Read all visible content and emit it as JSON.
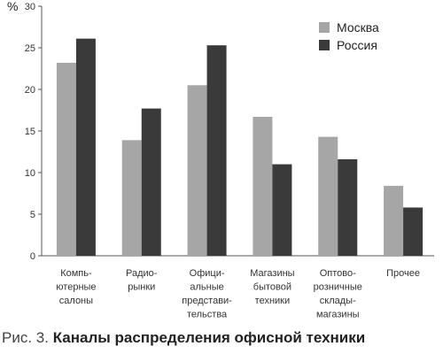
{
  "colors": {
    "moscow": "#a6a6a6",
    "russia": "#3a3a3a",
    "axis": "#555555"
  },
  "caption": {
    "prefix": "Рис. 3.",
    "title": "Каналы распределения офисной техники"
  },
  "chart_data": {
    "type": "bar",
    "title": "",
    "ylabel": "%",
    "xlabel": "",
    "ylim": [
      0,
      30
    ],
    "yticks": [
      0,
      5,
      10,
      15,
      20,
      25,
      30
    ],
    "grid": false,
    "legend": "top-right",
    "categories": [
      [
        "Компь-",
        "ютерные",
        "салоны"
      ],
      [
        "Радио-",
        "рынки"
      ],
      [
        "Офици-",
        "альные",
        "представи-",
        "тельства"
      ],
      [
        "Магазины",
        "бытовой",
        "техники"
      ],
      [
        "Оптово-",
        "розничные",
        "склады-",
        "магазины"
      ],
      [
        "Прочее"
      ]
    ],
    "series": [
      {
        "name": "Москва",
        "color": "#a6a6a6",
        "values": [
          23.2,
          13.9,
          20.5,
          16.7,
          14.3,
          8.4
        ]
      },
      {
        "name": "Россия",
        "color": "#3a3a3a",
        "values": [
          26.1,
          17.7,
          25.3,
          11.0,
          11.6,
          5.8
        ]
      }
    ]
  }
}
